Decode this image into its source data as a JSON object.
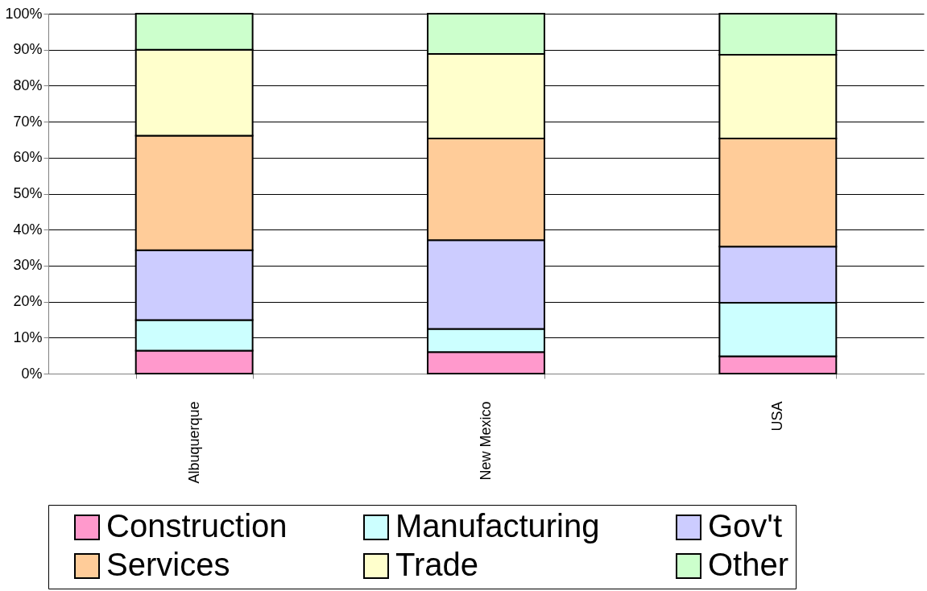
{
  "chart_data": {
    "type": "bar",
    "stacked": true,
    "categories": [
      "Albuquerque",
      "New Mexico",
      "USA"
    ],
    "series": [
      {
        "name": "Construction",
        "color": "#ff99cc",
        "values": [
          6.4,
          6.0,
          4.8
        ]
      },
      {
        "name": "Manufacturing",
        "color": "#ccffff",
        "values": [
          8.5,
          6.4,
          14.9
        ]
      },
      {
        "name": "Gov't",
        "color": "#ccccff",
        "values": [
          19.4,
          24.7,
          15.6
        ]
      },
      {
        "name": "Services",
        "color": "#ffcc99",
        "values": [
          31.8,
          28.2,
          30.0
        ]
      },
      {
        "name": "Trade",
        "color": "#ffffcc",
        "values": [
          23.9,
          23.5,
          23.3
        ]
      },
      {
        "name": "Other",
        "color": "#ccffcc",
        "values": [
          10.0,
          11.2,
          11.4
        ]
      }
    ],
    "ylim": [
      0,
      100
    ],
    "yticks": [
      {
        "value": 0,
        "label": "0%"
      },
      {
        "value": 10,
        "label": "10%"
      },
      {
        "value": 20,
        "label": "20%"
      },
      {
        "value": 30,
        "label": "30%"
      },
      {
        "value": 40,
        "label": "40%"
      },
      {
        "value": 50,
        "label": "50%"
      },
      {
        "value": 60,
        "label": "60%"
      },
      {
        "value": 70,
        "label": "70%"
      },
      {
        "value": 80,
        "label": "80%"
      },
      {
        "value": 90,
        "label": "90%"
      },
      {
        "value": 100,
        "label": "100%"
      }
    ],
    "grid": "y",
    "legend": "bottom"
  }
}
